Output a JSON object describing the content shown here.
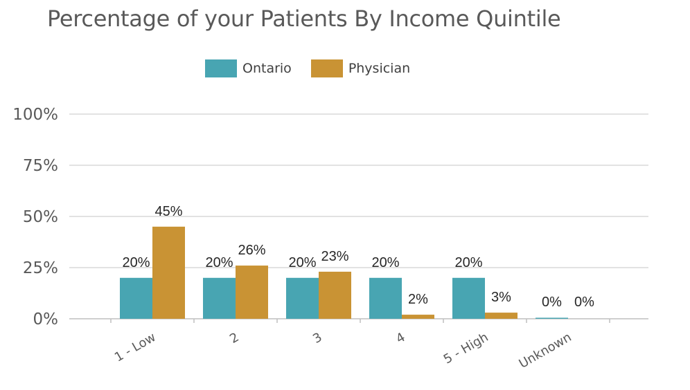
{
  "chart_data": {
    "type": "bar",
    "title": "Percentage of your Patients By Income Quintile",
    "categories": [
      "1 - Low",
      "2",
      "3",
      "4",
      "5 - High",
      "Unknown"
    ],
    "series": [
      {
        "name": "Ontario",
        "color": "#48a5b2",
        "values": [
          20,
          20,
          20,
          20,
          20,
          0
        ],
        "labels": [
          "20%",
          "20%",
          "20%",
          "20%",
          "20%",
          "0%"
        ]
      },
      {
        "name": "Physician",
        "color": "#c99334",
        "values": [
          45,
          26,
          23,
          2,
          3,
          0
        ],
        "labels": [
          "45%",
          "26%",
          "23%",
          "2%",
          "3%",
          "0%"
        ]
      }
    ],
    "ylim": [
      0,
      100
    ],
    "yticks": [
      0,
      25,
      50,
      75,
      100
    ],
    "ytick_labels": [
      "0%",
      "25%",
      "50%",
      "75%",
      "100%"
    ],
    "xlabel": "",
    "ylabel": "",
    "grid": true,
    "legend_position": "top-center"
  }
}
